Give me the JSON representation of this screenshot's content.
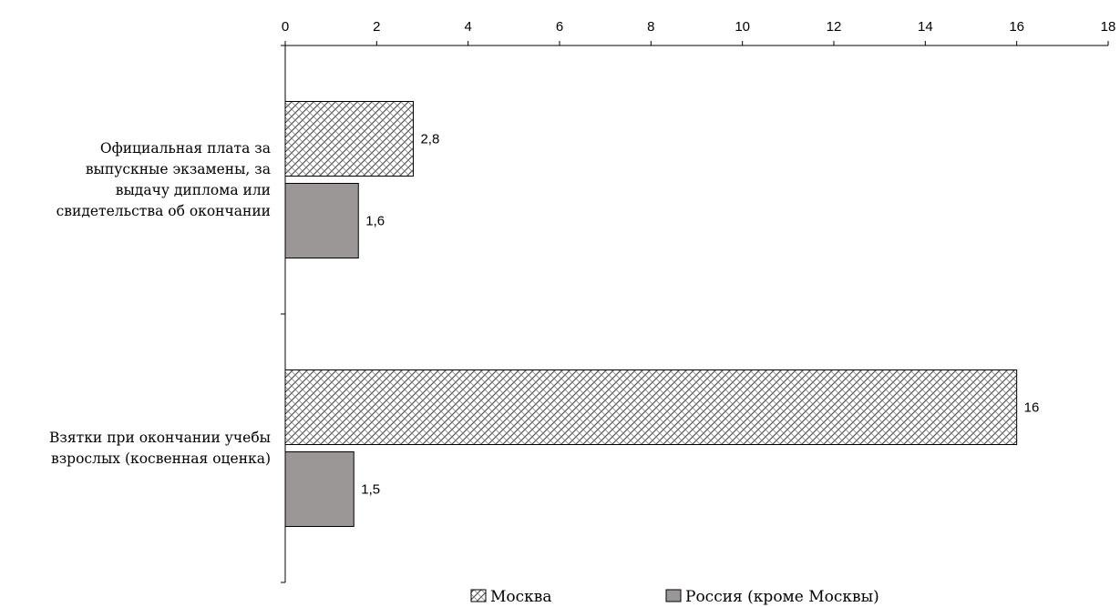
{
  "chart_data": {
    "type": "bar",
    "orientation": "horizontal",
    "categories": [
      "Официальная плата за выпускные экзамены, за выдачу диплома или свидетельства об окончании",
      "Взятки при окончании учебы взрослых (косвенная оценка)"
    ],
    "category_lines": [
      [
        "Официальная плата за",
        "выпускные экзамены, за",
        "выдачу диплома или",
        "свидетельства об окончании"
      ],
      [
        "Взятки при окончании учебы",
        "взрослых (косвенная оценка)"
      ]
    ],
    "series": [
      {
        "name": "Москва",
        "values": [
          2.8,
          16
        ],
        "value_labels": [
          "2,8",
          "16"
        ],
        "pattern": "hatch",
        "color": "#ffffff"
      },
      {
        "name": "Россия (кроме Москвы)",
        "values": [
          1.6,
          1.5
        ],
        "value_labels": [
          "1,6",
          "1,5"
        ],
        "pattern": "solid",
        "color": "#9c9797"
      }
    ],
    "xlim": [
      0,
      18
    ],
    "xticks": [
      0,
      2,
      4,
      6,
      8,
      10,
      12,
      14,
      16,
      18
    ],
    "x_axis_position": "top",
    "grid": false,
    "legend_position": "bottom-center",
    "title": "",
    "xlabel": "",
    "ylabel": ""
  }
}
